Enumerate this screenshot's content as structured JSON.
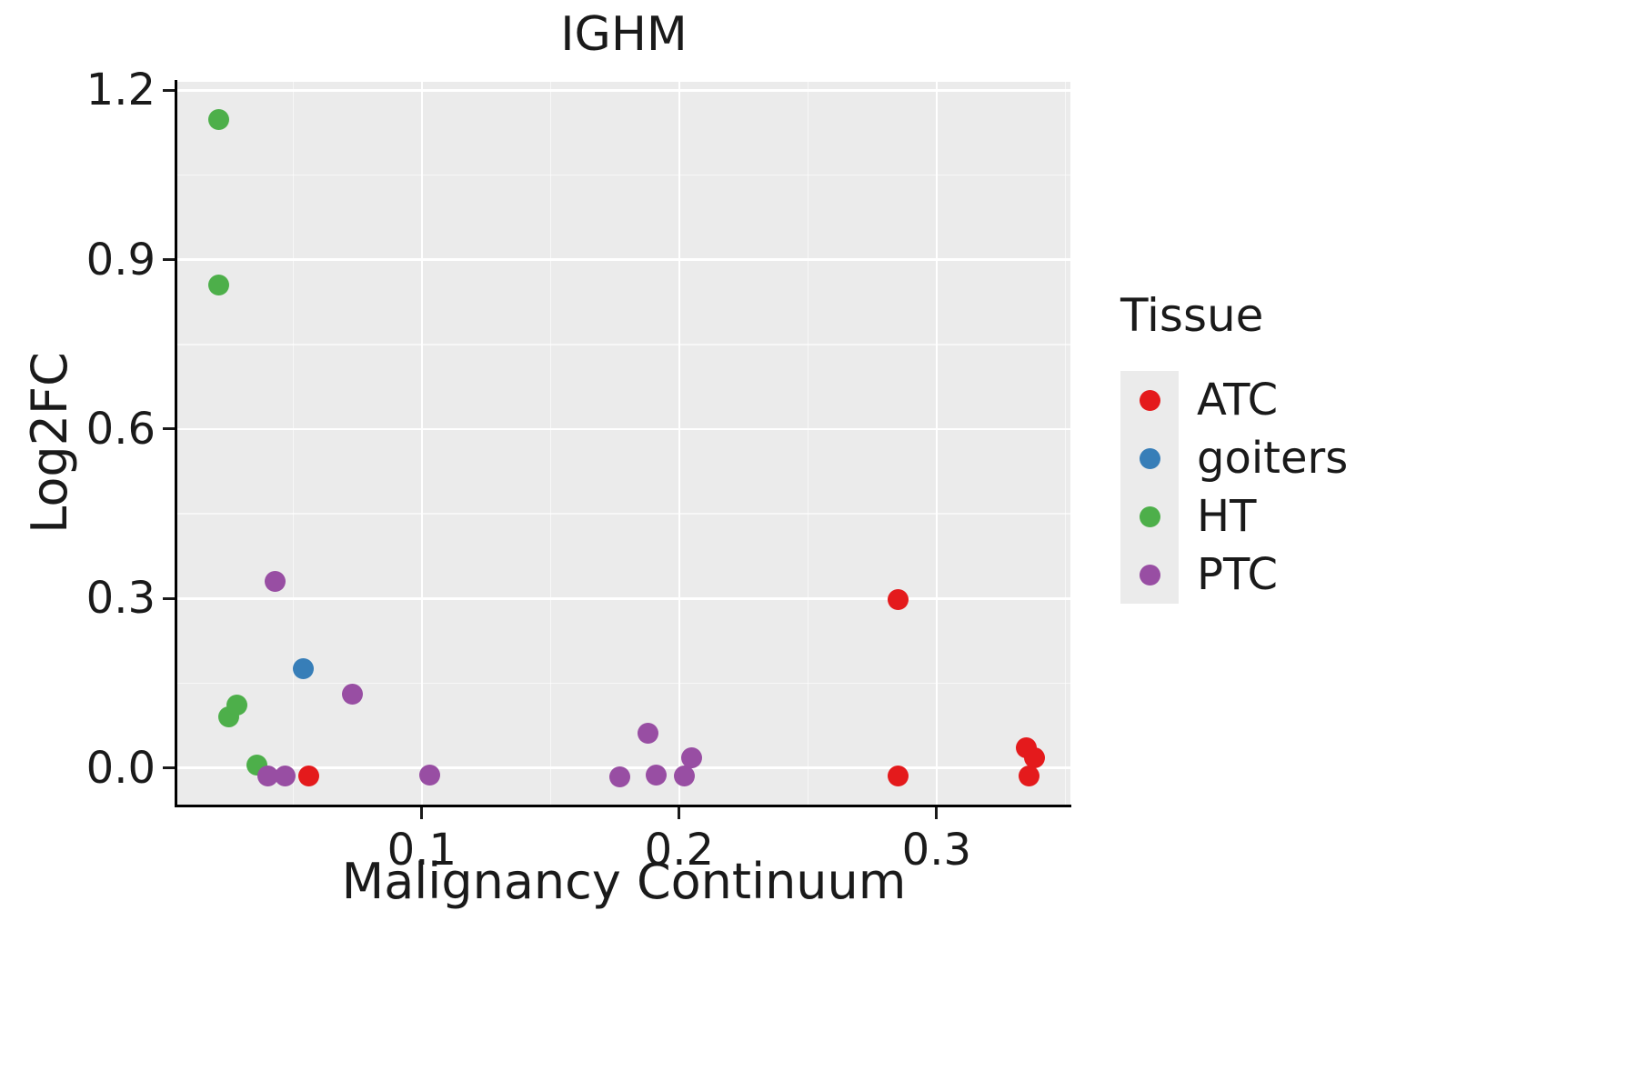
{
  "title": "IGHM",
  "legend": {
    "title": "Tissue",
    "items": [
      {
        "label": "ATC",
        "color": "#E41A1C"
      },
      {
        "label": "goiters",
        "color": "#377EB8"
      },
      {
        "label": "HT",
        "color": "#4DAF4A"
      },
      {
        "label": "PTC",
        "color": "#984EA3"
      }
    ]
  },
  "chart_data": {
    "type": "scatter",
    "title": "IGHM",
    "xlabel": "Malignancy Continuum",
    "ylabel": "Log2FC",
    "xlim": [
      0.005,
      0.352
    ],
    "ylim": [
      -0.065,
      1.215
    ],
    "xticks": [
      0.1,
      0.2,
      0.3
    ],
    "xtick_labels": [
      "0.1",
      "0.2",
      "0.3"
    ],
    "yticks": [
      0.0,
      0.3,
      0.6,
      0.9,
      1.2
    ],
    "ytick_labels": [
      "0.0",
      "0.3",
      "0.6",
      "0.9",
      "1.2"
    ],
    "grid": true,
    "legend_position": "right",
    "legend_title": "Tissue",
    "series": [
      {
        "name": "ATC",
        "color": "#E41A1C",
        "points": [
          [
            0.056,
            -0.015
          ],
          [
            0.285,
            0.298
          ],
          [
            0.285,
            -0.015
          ],
          [
            0.335,
            0.035
          ],
          [
            0.338,
            0.018
          ],
          [
            0.336,
            -0.015
          ]
        ]
      },
      {
        "name": "goiters",
        "color": "#377EB8",
        "points": [
          [
            0.054,
            0.175
          ]
        ]
      },
      {
        "name": "HT",
        "color": "#4DAF4A",
        "points": [
          [
            0.021,
            1.148
          ],
          [
            0.021,
            0.855
          ],
          [
            0.025,
            0.09
          ],
          [
            0.028,
            0.112
          ],
          [
            0.036,
            0.005
          ]
        ]
      },
      {
        "name": "PTC",
        "color": "#984EA3",
        "points": [
          [
            0.04,
            -0.015
          ],
          [
            0.043,
            0.33
          ],
          [
            0.047,
            -0.015
          ],
          [
            0.073,
            0.13
          ],
          [
            0.103,
            -0.012
          ],
          [
            0.177,
            -0.016
          ],
          [
            0.188,
            0.062
          ],
          [
            0.191,
            -0.013
          ],
          [
            0.202,
            -0.015
          ],
          [
            0.205,
            0.018
          ]
        ]
      }
    ]
  }
}
